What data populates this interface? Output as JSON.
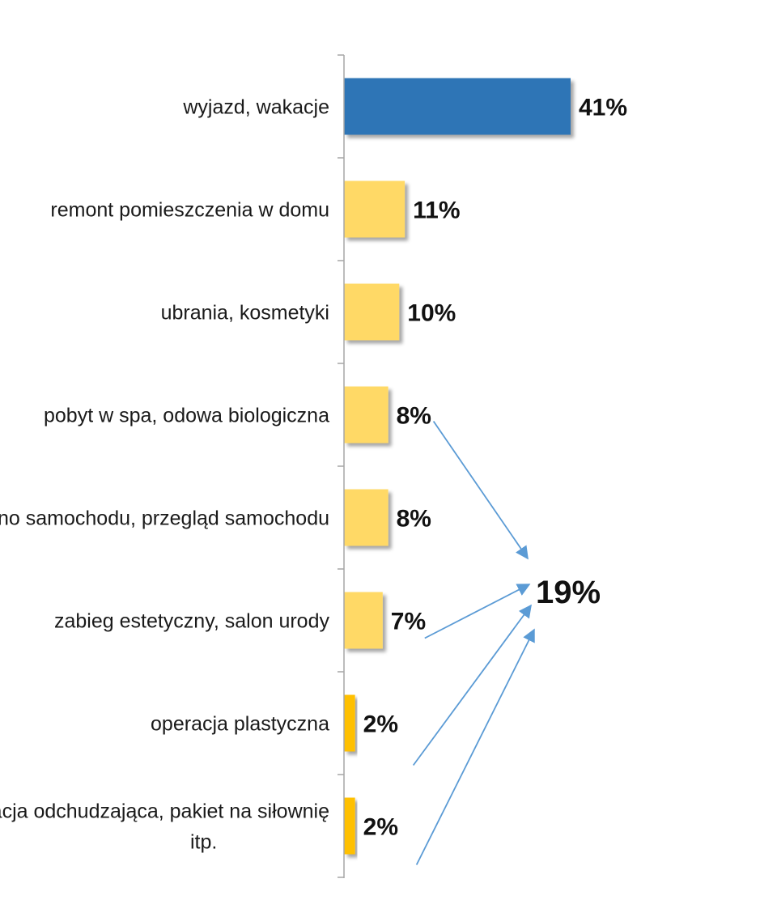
{
  "chart_data": {
    "type": "bar",
    "orientation": "horizontal",
    "categories": [
      "wyjazd,  wakacje",
      "remont pomieszczenia w domu",
      "ubrania, kosmetyki",
      "pobyt w spa, odowa biologiczna",
      "kupno samochodu,  przegląd samochodu",
      "zabieg estetyczny, salon urody",
      "operacja plastyczna",
      "kuracja odchudzająca,  pakiet na siłownię itp."
    ],
    "category_lines": [
      [
        "wyjazd,  wakacje"
      ],
      [
        "remont pomieszczenia w domu"
      ],
      [
        "ubrania, kosmetyki"
      ],
      [
        "pobyt w spa, odowa biologiczna"
      ],
      [
        "kupno samochodu,  przegląd samochodu"
      ],
      [
        "zabieg estetyczny, salon urody"
      ],
      [
        "operacja plastyczna"
      ],
      [
        "kuracja odchudzająca,  pakiet na siłownię",
        "itp."
      ]
    ],
    "values": [
      41,
      11,
      10,
      8,
      8,
      7,
      2,
      2
    ],
    "value_labels": [
      "41%",
      "11%",
      "10%",
      "8%",
      "8%",
      "7%",
      "2%",
      "2%"
    ],
    "bar_colors": [
      "#2e75b6",
      "#ffd966",
      "#ffd966",
      "#ffd966",
      "#ffd966",
      "#ffd966",
      "#ffc000",
      "#ffc000"
    ],
    "xlim": [
      0,
      41
    ],
    "grid": false,
    "annotation": {
      "label": "19%",
      "arrow_sources": [
        3,
        5,
        6,
        7
      ],
      "arrow_color": "#5b9bd5"
    },
    "title": "",
    "xlabel": "",
    "ylabel": ""
  }
}
